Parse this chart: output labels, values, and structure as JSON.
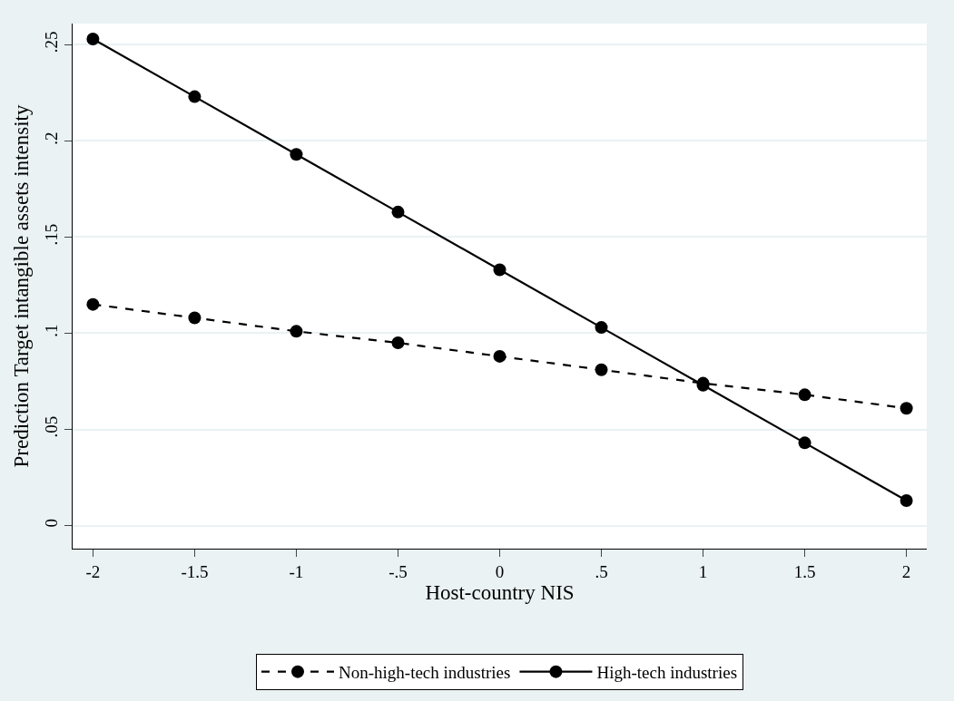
{
  "chart_data": {
    "type": "line",
    "xlabel": "Host-country NIS",
    "ylabel": "Prediction Target intangible assets intensity",
    "x": [
      -2,
      -1.5,
      -1,
      -0.5,
      0,
      0.5,
      1,
      1.5,
      2
    ],
    "series": [
      {
        "name": "Non-high-tech industries",
        "color": "#000000",
        "line_style": "dashed",
        "values": [
          0.115,
          0.108,
          0.101,
          0.095,
          0.088,
          0.081,
          0.074,
          0.068,
          0.061
        ]
      },
      {
        "name": "High-tech industries",
        "color": "#000000",
        "line_style": "solid",
        "values": [
          0.253,
          0.223,
          0.193,
          0.163,
          0.133,
          0.103,
          0.073,
          0.043,
          0.013
        ]
      }
    ],
    "xlim": [
      -2.1,
      2.1
    ],
    "xticks": [
      -2,
      -1.5,
      -1,
      {
        "value": -0.5,
        "label": "-.5"
      },
      0,
      {
        "value": 0.5,
        "label": ".5"
      },
      1,
      1.5,
      2
    ],
    "ylim": [
      -0.012,
      0.261
    ],
    "yticks": [
      0,
      {
        "value": 0.05,
        "label": ".05"
      },
      {
        "value": 0.1,
        "label": ".1"
      },
      {
        "value": 0.15,
        "label": ".15"
      },
      {
        "value": 0.2,
        "label": ".2"
      },
      {
        "value": 0.25,
        "label": ".25"
      }
    ],
    "grid": "y",
    "legend": "bottom",
    "marker": "circle"
  }
}
